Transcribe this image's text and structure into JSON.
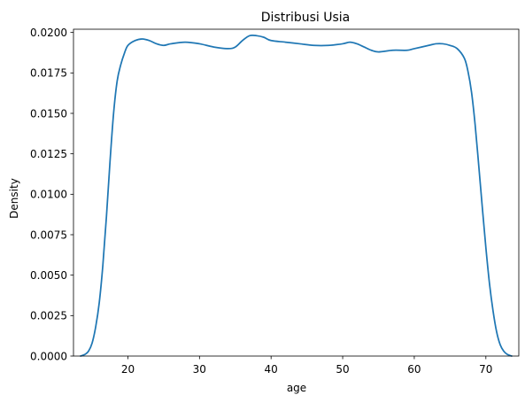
{
  "chart_data": {
    "type": "line",
    "title": "Distribusi Usia",
    "xlabel": "age",
    "ylabel": "Density",
    "xlim": [
      12.4,
      74.6
    ],
    "ylim": [
      0,
      0.0202
    ],
    "x_ticks": [
      {
        "value": 20,
        "label": "20"
      },
      {
        "value": 30,
        "label": "30"
      },
      {
        "value": 40,
        "label": "40"
      },
      {
        "value": 50,
        "label": "50"
      },
      {
        "value": 60,
        "label": "60"
      },
      {
        "value": 70,
        "label": "70"
      }
    ],
    "y_ticks": [
      {
        "value": 0,
        "label": "0.0000"
      },
      {
        "value": 0.0025,
        "label": "0.0025"
      },
      {
        "value": 0.005,
        "label": "0.0050"
      },
      {
        "value": 0.0075,
        "label": "0.0075"
      },
      {
        "value": 0.01,
        "label": "0.0100"
      },
      {
        "value": 0.0125,
        "label": "0.0125"
      },
      {
        "value": 0.015,
        "label": "0.0150"
      },
      {
        "value": 0.0175,
        "label": "0.0175"
      },
      {
        "value": 0.02,
        "label": "0.0200"
      }
    ],
    "grid": false,
    "legend": "none",
    "series": [
      {
        "color": "#1f77b4",
        "points": [
          [
            13.4,
            0.0
          ],
          [
            14.0,
            0.0001
          ],
          [
            14.5,
            0.0003
          ],
          [
            15.0,
            0.0008
          ],
          [
            15.5,
            0.0018
          ],
          [
            16.0,
            0.0033
          ],
          [
            16.5,
            0.0056
          ],
          [
            17.0,
            0.0086
          ],
          [
            17.5,
            0.012
          ],
          [
            18.0,
            0.015
          ],
          [
            18.5,
            0.017
          ],
          [
            19.0,
            0.018
          ],
          [
            19.5,
            0.0187
          ],
          [
            20.0,
            0.0192
          ],
          [
            21.0,
            0.0195
          ],
          [
            22.0,
            0.0196
          ],
          [
            23.0,
            0.0195
          ],
          [
            24.0,
            0.0193
          ],
          [
            25.0,
            0.0192
          ],
          [
            26.0,
            0.0193
          ],
          [
            28.0,
            0.0194
          ],
          [
            30.0,
            0.0193
          ],
          [
            32.0,
            0.0191
          ],
          [
            34.0,
            0.019
          ],
          [
            35.0,
            0.0191
          ],
          [
            36.0,
            0.0195
          ],
          [
            37.0,
            0.0198
          ],
          [
            38.0,
            0.0198
          ],
          [
            39.0,
            0.0197
          ],
          [
            40.0,
            0.0195
          ],
          [
            42.0,
            0.0194
          ],
          [
            44.0,
            0.0193
          ],
          [
            46.0,
            0.0192
          ],
          [
            48.0,
            0.0192
          ],
          [
            50.0,
            0.0193
          ],
          [
            51.0,
            0.0194
          ],
          [
            52.0,
            0.0193
          ],
          [
            53.0,
            0.0191
          ],
          [
            54.0,
            0.0189
          ],
          [
            55.0,
            0.0188
          ],
          [
            57.0,
            0.0189
          ],
          [
            59.0,
            0.0189
          ],
          [
            60.0,
            0.019
          ],
          [
            62.0,
            0.0192
          ],
          [
            63.0,
            0.0193
          ],
          [
            64.0,
            0.0193
          ],
          [
            65.0,
            0.0192
          ],
          [
            66.0,
            0.019
          ],
          [
            67.0,
            0.0184
          ],
          [
            67.5,
            0.0176
          ],
          [
            68.0,
            0.0163
          ],
          [
            68.5,
            0.0143
          ],
          [
            69.0,
            0.0118
          ],
          [
            69.5,
            0.0092
          ],
          [
            70.0,
            0.0067
          ],
          [
            70.5,
            0.0045
          ],
          [
            71.0,
            0.0028
          ],
          [
            71.5,
            0.0015
          ],
          [
            72.0,
            0.0007
          ],
          [
            72.5,
            0.0003
          ],
          [
            73.0,
            0.0001
          ],
          [
            73.6,
            0.0
          ]
        ]
      }
    ]
  }
}
